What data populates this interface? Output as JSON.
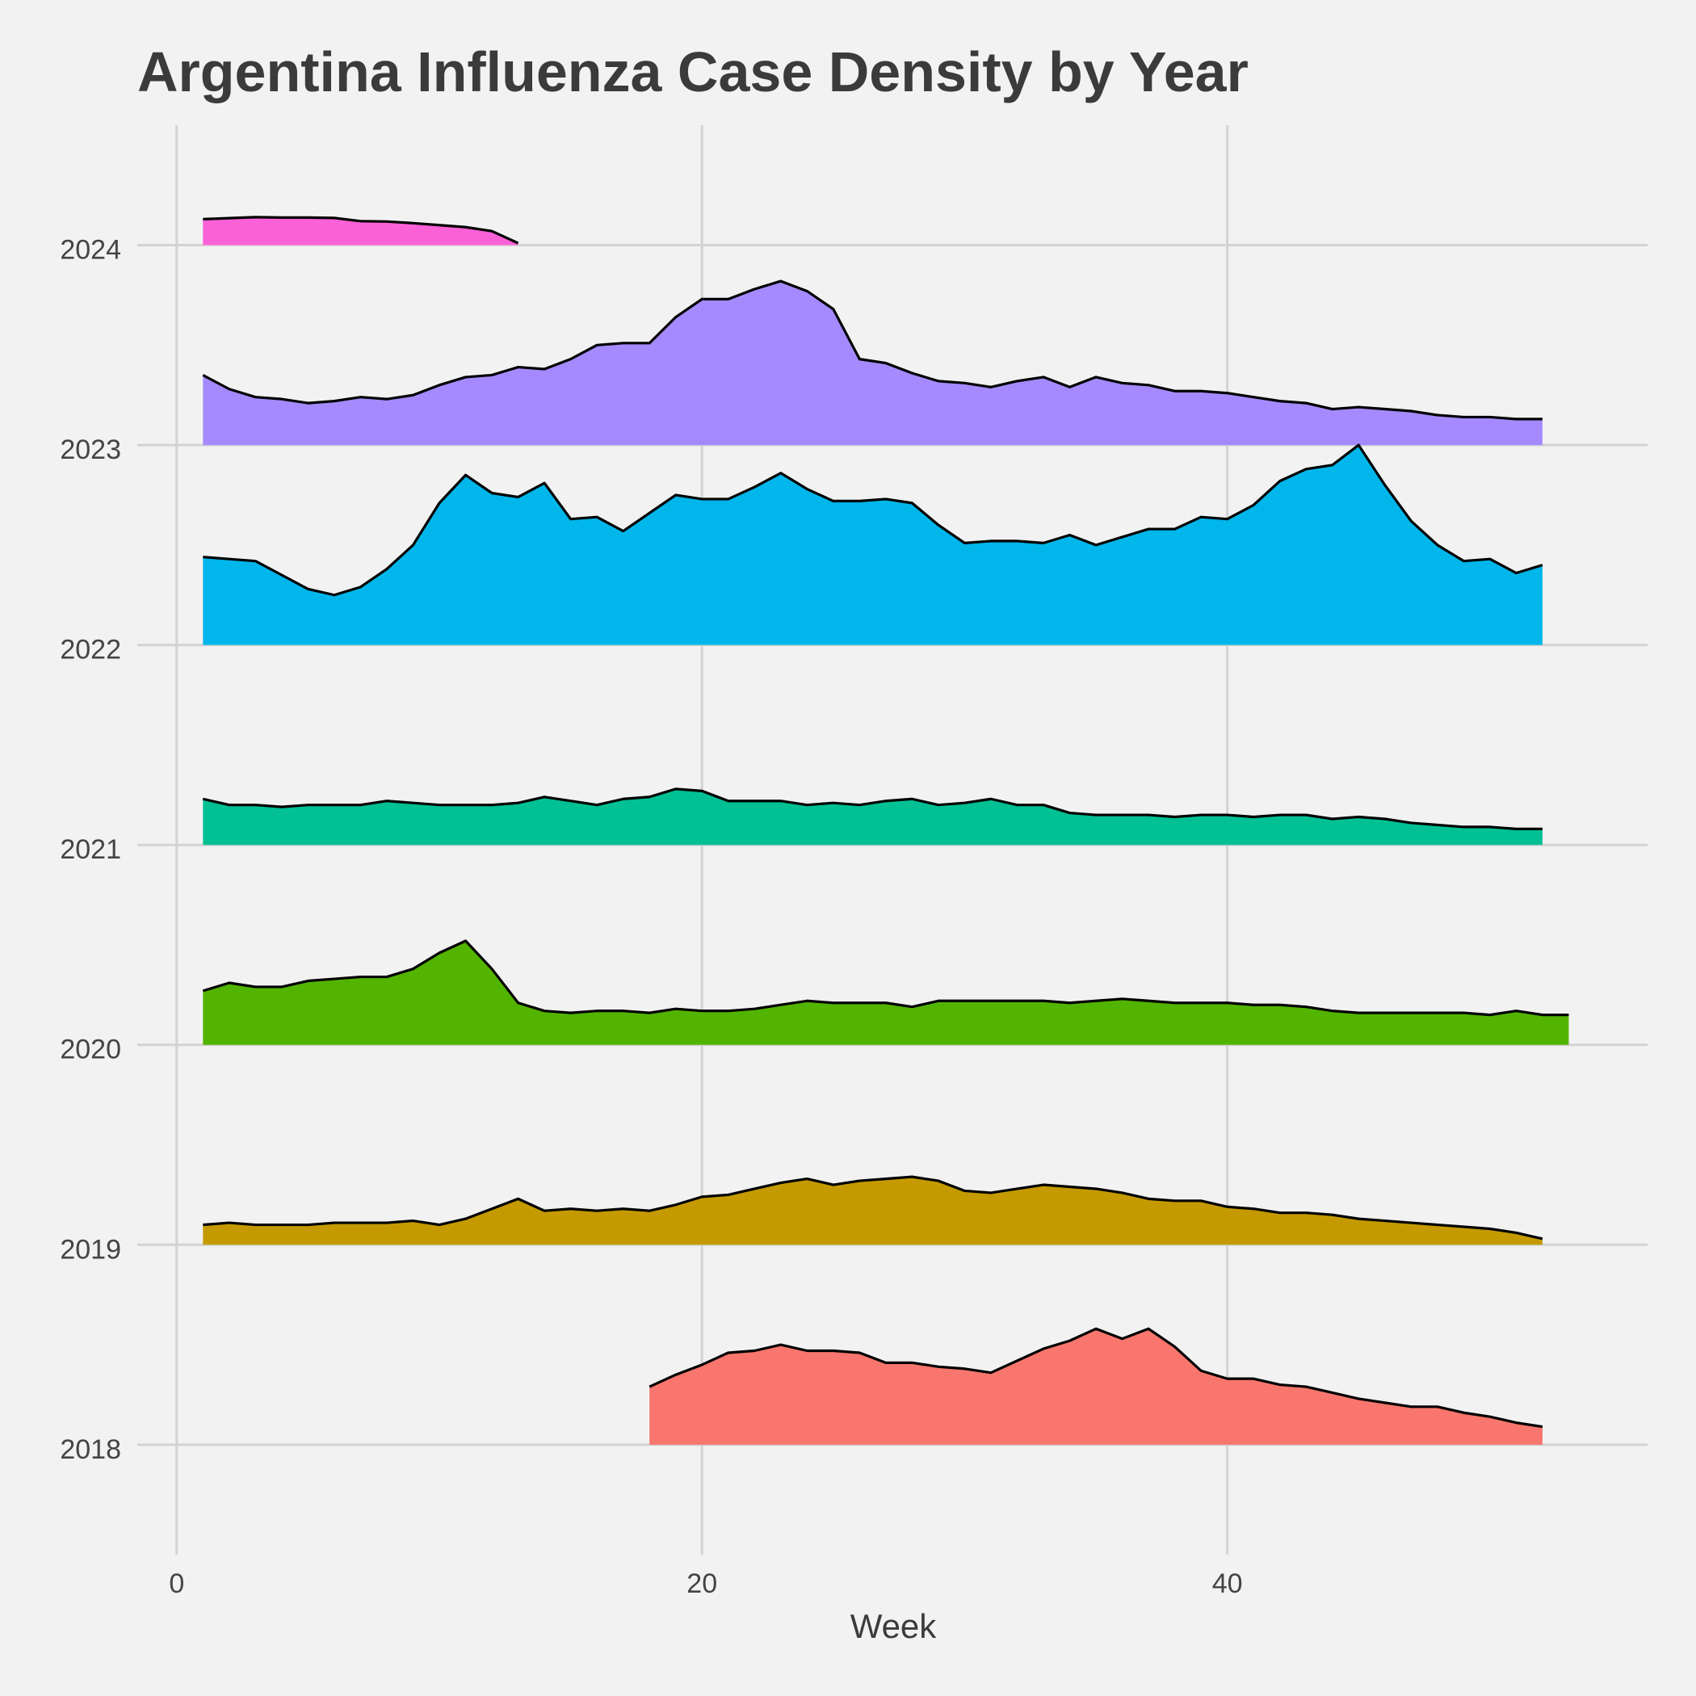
{
  "chart_data": {
    "type": "area",
    "title": "Argentina Influenza Case Density by Year",
    "xlabel": "Week",
    "ylabel": "",
    "xlim": [
      -1.5,
      56
    ],
    "ylim": [
      2017.45,
      2024.6
    ],
    "x_ticks": [
      0,
      20,
      40
    ],
    "x_tick_labels": [
      "0",
      "20",
      "40"
    ],
    "y_ticks": [
      2018,
      2019,
      2020,
      2021,
      2022,
      2023,
      2024
    ],
    "y_tick_labels": [
      "2018",
      "2019",
      "2020",
      "2021",
      "2022",
      "2023",
      "2024"
    ],
    "grid": true,
    "legend": "none",
    "series": [
      {
        "name": "2018",
        "baseline": 2018,
        "color": "#F8766D",
        "x": [
          18,
          19,
          20,
          21,
          22,
          23,
          24,
          25,
          26,
          27,
          28,
          29,
          30,
          31,
          32,
          33,
          34,
          35,
          36,
          37,
          38,
          39,
          40,
          41,
          42,
          43,
          44,
          45,
          46,
          47,
          48,
          49,
          50,
          51,
          52
        ],
        "y": [
          2018.29,
          2018.35,
          2018.4,
          2018.46,
          2018.47,
          2018.5,
          2018.47,
          2018.47,
          2018.46,
          2018.41,
          2018.41,
          2018.39,
          2018.38,
          2018.36,
          2018.42,
          2018.48,
          2018.52,
          2018.58,
          2018.53,
          2018.58,
          2018.49,
          2018.37,
          2018.33,
          2018.33,
          2018.3,
          2018.29,
          2018.26,
          2018.23,
          2018.21,
          2018.19,
          2018.19,
          2018.16,
          2018.14,
          2018.11,
          2018.09
        ]
      },
      {
        "name": "2019",
        "baseline": 2019,
        "color": "#C49A00",
        "x": [
          1,
          2,
          3,
          4,
          5,
          6,
          7,
          8,
          9,
          10,
          11,
          12,
          13,
          14,
          15,
          16,
          17,
          18,
          19,
          20,
          21,
          22,
          23,
          24,
          25,
          26,
          27,
          28,
          29,
          30,
          31,
          32,
          33,
          34,
          35,
          36,
          37,
          38,
          39,
          40,
          41,
          42,
          43,
          44,
          45,
          46,
          47,
          48,
          49,
          50,
          51,
          52
        ],
        "y": [
          2019.1,
          2019.11,
          2019.1,
          2019.1,
          2019.1,
          2019.11,
          2019.11,
          2019.11,
          2019.12,
          2019.1,
          2019.13,
          2019.18,
          2019.23,
          2019.17,
          2019.18,
          2019.17,
          2019.18,
          2019.17,
          2019.2,
          2019.24,
          2019.25,
          2019.28,
          2019.31,
          2019.33,
          2019.3,
          2019.32,
          2019.33,
          2019.34,
          2019.32,
          2019.27,
          2019.26,
          2019.28,
          2019.3,
          2019.29,
          2019.28,
          2019.26,
          2019.23,
          2019.22,
          2019.22,
          2019.19,
          2019.18,
          2019.16,
          2019.16,
          2019.15,
          2019.13,
          2019.12,
          2019.11,
          2019.1,
          2019.09,
          2019.08,
          2019.06,
          2019.03
        ]
      },
      {
        "name": "2020",
        "baseline": 2020,
        "color": "#53B400",
        "x": [
          1,
          2,
          3,
          4,
          5,
          6,
          7,
          8,
          9,
          10,
          11,
          12,
          13,
          14,
          15,
          16,
          17,
          18,
          19,
          20,
          21,
          22,
          23,
          24,
          25,
          26,
          27,
          28,
          29,
          30,
          31,
          32,
          33,
          34,
          35,
          36,
          37,
          38,
          39,
          40,
          41,
          42,
          43,
          44,
          45,
          46,
          47,
          48,
          49,
          50,
          51,
          52,
          53
        ],
        "y": [
          2020.27,
          2020.31,
          2020.29,
          2020.29,
          2020.32,
          2020.33,
          2020.34,
          2020.34,
          2020.38,
          2020.46,
          2020.52,
          2020.38,
          2020.21,
          2020.17,
          2020.16,
          2020.17,
          2020.17,
          2020.16,
          2020.18,
          2020.17,
          2020.17,
          2020.18,
          2020.2,
          2020.22,
          2020.21,
          2020.21,
          2020.21,
          2020.19,
          2020.22,
          2020.22,
          2020.22,
          2020.22,
          2020.22,
          2020.21,
          2020.22,
          2020.23,
          2020.22,
          2020.21,
          2020.21,
          2020.21,
          2020.2,
          2020.2,
          2020.19,
          2020.17,
          2020.16,
          2020.16,
          2020.16,
          2020.16,
          2020.16,
          2020.15,
          2020.17,
          2020.15,
          2020.15
        ]
      },
      {
        "name": "2021",
        "baseline": 2021,
        "color": "#00C094",
        "x": [
          1,
          2,
          3,
          4,
          5,
          6,
          7,
          8,
          9,
          10,
          11,
          12,
          13,
          14,
          15,
          16,
          17,
          18,
          19,
          20,
          21,
          22,
          23,
          24,
          25,
          26,
          27,
          28,
          29,
          30,
          31,
          32,
          33,
          34,
          35,
          36,
          37,
          38,
          39,
          40,
          41,
          42,
          43,
          44,
          45,
          46,
          47,
          48,
          49,
          50,
          51,
          52
        ],
        "y": [
          2021.23,
          2021.2,
          2021.2,
          2021.19,
          2021.2,
          2021.2,
          2021.2,
          2021.22,
          2021.21,
          2021.2,
          2021.2,
          2021.2,
          2021.21,
          2021.24,
          2021.22,
          2021.2,
          2021.23,
          2021.24,
          2021.28,
          2021.27,
          2021.22,
          2021.22,
          2021.22,
          2021.2,
          2021.21,
          2021.2,
          2021.22,
          2021.23,
          2021.2,
          2021.21,
          2021.23,
          2021.2,
          2021.2,
          2021.16,
          2021.15,
          2021.15,
          2021.15,
          2021.14,
          2021.15,
          2021.15,
          2021.14,
          2021.15,
          2021.15,
          2021.13,
          2021.14,
          2021.13,
          2021.11,
          2021.1,
          2021.09,
          2021.09,
          2021.08,
          2021.08
        ]
      },
      {
        "name": "2022",
        "baseline": 2022,
        "color": "#00B6EB",
        "x": [
          1,
          2,
          3,
          4,
          5,
          6,
          7,
          8,
          9,
          10,
          11,
          12,
          13,
          14,
          15,
          16,
          17,
          18,
          19,
          20,
          21,
          22,
          23,
          24,
          25,
          26,
          27,
          28,
          29,
          30,
          31,
          32,
          33,
          34,
          35,
          36,
          37,
          38,
          39,
          40,
          41,
          42,
          43,
          44,
          45,
          46,
          47,
          48,
          49,
          50,
          51,
          52
        ],
        "y": [
          2022.44,
          2022.43,
          2022.42,
          2022.35,
          2022.28,
          2022.25,
          2022.29,
          2022.38,
          2022.5,
          2022.71,
          2022.85,
          2022.76,
          2022.74,
          2022.81,
          2022.63,
          2022.64,
          2022.57,
          2022.66,
          2022.75,
          2022.73,
          2022.73,
          2022.79,
          2022.86,
          2022.78,
          2022.72,
          2022.72,
          2022.73,
          2022.71,
          2022.6,
          2022.51,
          2022.52,
          2022.52,
          2022.51,
          2022.55,
          2022.5,
          2022.54,
          2022.58,
          2022.58,
          2022.64,
          2022.63,
          2022.7,
          2022.82,
          2022.88,
          2022.9,
          2023.0,
          2022.8,
          2022.62,
          2022.5,
          2022.42,
          2022.43,
          2022.36,
          2022.4
        ]
      },
      {
        "name": "2023",
        "baseline": 2023,
        "color": "#A58AFF",
        "x": [
          1,
          2,
          3,
          4,
          5,
          6,
          7,
          8,
          9,
          10,
          11,
          12,
          13,
          14,
          15,
          16,
          17,
          18,
          19,
          20,
          21,
          22,
          23,
          24,
          25,
          26,
          27,
          28,
          29,
          30,
          31,
          32,
          33,
          34,
          35,
          36,
          37,
          38,
          39,
          40,
          41,
          42,
          43,
          44,
          45,
          46,
          47,
          48,
          49,
          50,
          51,
          52
        ],
        "y": [
          2023.35,
          2023.28,
          2023.24,
          2023.23,
          2023.21,
          2023.22,
          2023.24,
          2023.23,
          2023.25,
          2023.3,
          2023.34,
          2023.35,
          2023.39,
          2023.38,
          2023.43,
          2023.5,
          2023.51,
          2023.51,
          2023.64,
          2023.73,
          2023.73,
          2023.78,
          2023.82,
          2023.77,
          2023.68,
          2023.43,
          2023.41,
          2023.36,
          2023.32,
          2023.31,
          2023.29,
          2023.32,
          2023.34,
          2023.29,
          2023.34,
          2023.31,
          2023.3,
          2023.27,
          2023.27,
          2023.26,
          2023.24,
          2023.22,
          2023.21,
          2023.18,
          2023.19,
          2023.18,
          2023.17,
          2023.15,
          2023.14,
          2023.14,
          2023.13,
          2023.13
        ]
      },
      {
        "name": "2024",
        "baseline": 2024,
        "color": "#FB61D7",
        "x": [
          1,
          2,
          3,
          4,
          5,
          6,
          7,
          8,
          9,
          10,
          11,
          12,
          13
        ],
        "y": [
          2024.13,
          2024.135,
          2024.14,
          2024.138,
          2024.138,
          2024.136,
          2024.12,
          2024.118,
          2024.11,
          2024.1,
          2024.09,
          2024.07,
          2024.01
        ]
      }
    ]
  }
}
